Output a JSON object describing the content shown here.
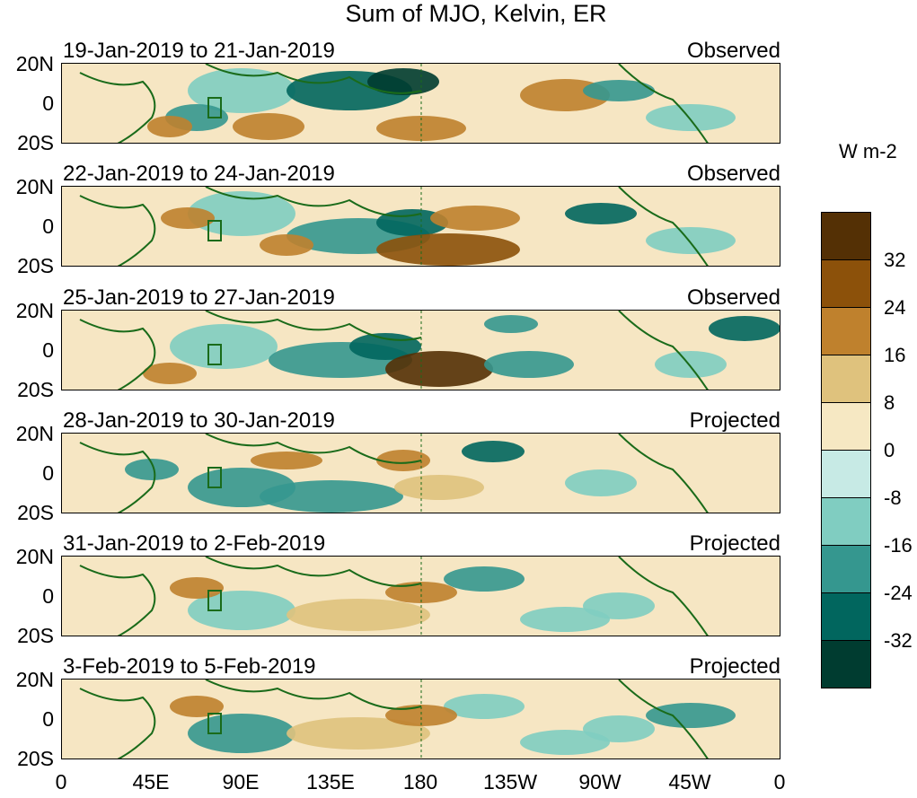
{
  "title": "Sum of MJO, Kelvin, ER",
  "units": "W m-2",
  "panels": [
    {
      "date_range": "19-Jan-2019 to 21-Jan-2019",
      "kind": "Observed"
    },
    {
      "date_range": "22-Jan-2019 to 24-Jan-2019",
      "kind": "Observed"
    },
    {
      "date_range": "25-Jan-2019 to 27-Jan-2019",
      "kind": "Observed"
    },
    {
      "date_range": "28-Jan-2019 to 30-Jan-2019",
      "kind": "Projected"
    },
    {
      "date_range": "31-Jan-2019 to 2-Feb-2019",
      "kind": "Projected"
    },
    {
      "date_range": "3-Feb-2019 to 5-Feb-2019",
      "kind": "Projected"
    }
  ],
  "lat_labels": [
    "20N",
    "0",
    "20S"
  ],
  "lon_labels": [
    "0",
    "45E",
    "90E",
    "135E",
    "180",
    "135W",
    "90W",
    "45W",
    "0"
  ],
  "colorbar": {
    "labels": [
      "32",
      "24",
      "16",
      "8",
      "0",
      "-8",
      "-16",
      "-24",
      "-32"
    ],
    "colors": [
      "#543005",
      "#8c510a",
      "#bf812d",
      "#dfc27d",
      "#f6e8c3",
      "#c7eae5",
      "#80cdc1",
      "#35978f",
      "#01665e",
      "#003c30"
    ]
  }
}
